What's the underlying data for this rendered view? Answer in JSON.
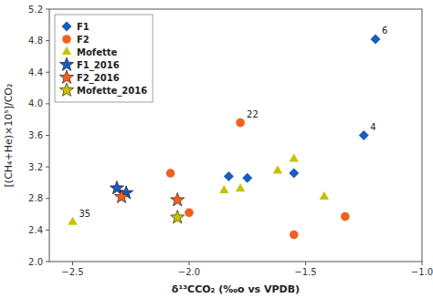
{
  "chart_data": {
    "type": "scatter",
    "xlabel": "δ¹³CCO₂ (‰o vs VPDB)",
    "ylabel": "[(CH₄+He)×10⁵]/CO₂",
    "xlim": [
      -2.6,
      -1.0
    ],
    "ylim": [
      2.0,
      5.2
    ],
    "xticks": [
      {
        "value": -2.5,
        "label": "−2.5"
      },
      {
        "value": -2.0,
        "label": "−2.0"
      },
      {
        "value": -1.5,
        "label": "−1.5"
      },
      {
        "value": -1.0,
        "label": "−1.0"
      }
    ],
    "yticks": [
      {
        "value": 2.0,
        "label": "2.0"
      },
      2.4,
      2.8,
      3.2,
      3.6,
      {
        "value": 4.0,
        "label": "4.0"
      },
      4.4,
      4.8,
      5.2
    ],
    "legend": "upper left",
    "series": [
      {
        "name": "F1",
        "color": "#1a5cbf",
        "marker": "diamond",
        "x": [
          -1.83,
          -1.75,
          -1.55,
          -1.25,
          -1.2
        ],
        "values": [
          3.08,
          3.06,
          3.12,
          3.6,
          4.82
        ],
        "labels": [
          null,
          null,
          null,
          "4",
          "6"
        ]
      },
      {
        "name": "F2",
        "color": "#f06020",
        "marker": "circle",
        "x": [
          -2.08,
          -1.78,
          -2.0,
          -1.55,
          -1.33
        ],
        "values": [
          3.12,
          3.76,
          2.62,
          2.34,
          2.57
        ],
        "labels": [
          null,
          "22",
          null,
          null,
          null
        ]
      },
      {
        "name": "Mofette",
        "color": "#c8c000",
        "marker": "triangle",
        "x": [
          -2.5,
          -1.85,
          -1.78,
          -1.62,
          -1.55,
          -1.42
        ],
        "values": [
          2.5,
          2.9,
          2.92,
          3.15,
          3.3,
          2.82
        ],
        "labels": [
          "35",
          null,
          null,
          null,
          null,
          null
        ]
      },
      {
        "name": "F1_2016",
        "color": "#1a5cbf",
        "marker": "star",
        "x": [
          -2.31,
          -2.27
        ],
        "values": [
          2.93,
          2.87
        ]
      },
      {
        "name": "F2_2016",
        "color": "#f06020",
        "marker": "star",
        "x": [
          -2.29,
          -2.05
        ],
        "values": [
          2.82,
          2.78
        ]
      },
      {
        "name": "Mofette_2016",
        "color": "#c8c000",
        "marker": "star",
        "x": [
          -2.05
        ],
        "values": [
          2.56
        ]
      }
    ]
  }
}
